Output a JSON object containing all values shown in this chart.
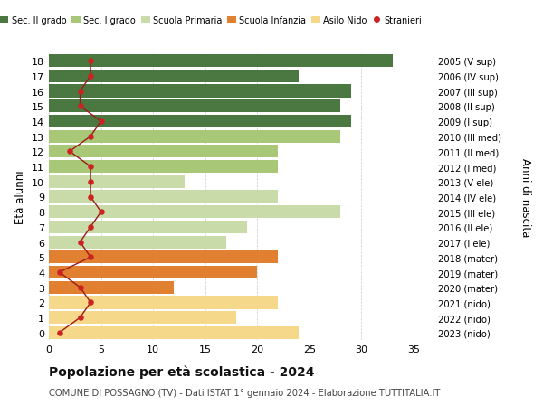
{
  "ages": [
    0,
    1,
    2,
    3,
    4,
    5,
    6,
    7,
    8,
    9,
    10,
    11,
    12,
    13,
    14,
    15,
    16,
    17,
    18
  ],
  "right_labels": [
    "2023 (nido)",
    "2022 (nido)",
    "2021 (nido)",
    "2020 (mater)",
    "2019 (mater)",
    "2018 (mater)",
    "2017 (I ele)",
    "2016 (II ele)",
    "2015 (III ele)",
    "2014 (IV ele)",
    "2013 (V ele)",
    "2012 (I med)",
    "2011 (II med)",
    "2010 (III med)",
    "2009 (I sup)",
    "2008 (II sup)",
    "2007 (III sup)",
    "2006 (IV sup)",
    "2005 (V sup)"
  ],
  "bar_values": [
    24,
    18,
    22,
    12,
    20,
    22,
    17,
    19,
    28,
    22,
    13,
    22,
    22,
    28,
    29,
    28,
    29,
    24,
    33
  ],
  "bar_colors": [
    "#f5d88a",
    "#f5d88a",
    "#f5d88a",
    "#e08030",
    "#e08030",
    "#e08030",
    "#c8dba8",
    "#c8dba8",
    "#c8dba8",
    "#c8dba8",
    "#c8dba8",
    "#a8c878",
    "#a8c878",
    "#a8c878",
    "#4a7840",
    "#4a7840",
    "#4a7840",
    "#4a7840",
    "#4a7840"
  ],
  "stranieri_values": [
    1,
    3,
    4,
    3,
    1,
    4,
    3,
    4,
    5,
    4,
    4,
    4,
    2,
    4,
    5,
    3,
    3,
    4,
    4
  ],
  "legend_labels": [
    "Sec. II grado",
    "Sec. I grado",
    "Scuola Primaria",
    "Scuola Infanzia",
    "Asilo Nido",
    "Stranieri"
  ],
  "legend_colors": [
    "#4a7840",
    "#a8c878",
    "#c8dba8",
    "#e08030",
    "#f5d88a",
    "#cc2222"
  ],
  "ylabel_left": "Età alunni",
  "ylabel_right": "Anni di nascita",
  "title": "Popolazione per età scolastica - 2024",
  "subtitle": "COMUNE DI POSSAGNO (TV) - Dati ISTAT 1° gennaio 2024 - Elaborazione TUTTITALIA.IT",
  "xlim": [
    0,
    37
  ],
  "xticks": [
    0,
    5,
    10,
    15,
    20,
    25,
    30,
    35
  ],
  "bg_color": "#ffffff",
  "bar_height": 0.85,
  "stranieri_color": "#cc2222",
  "stranieri_line_color": "#9b1a1a"
}
